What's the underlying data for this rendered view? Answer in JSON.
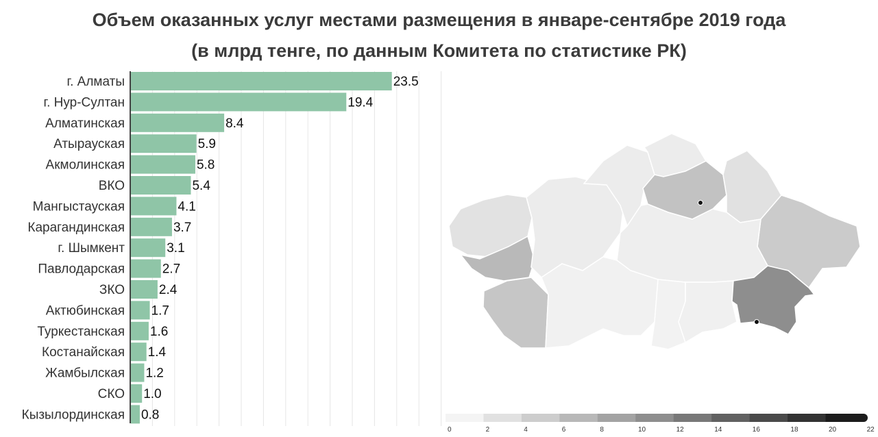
{
  "chart_data": {
    "type": "bar",
    "orientation": "horizontal",
    "title": "Объем оказанных услуг местами размещения в январе-сентябре 2019 года",
    "subtitle": "(в млрд тенге, по данным Комитета по статистике РК)",
    "categories": [
      "г. Алматы",
      "г. Нур-Султан",
      "Алматинская",
      "Атырауская",
      "Акмолинская",
      "ВКО",
      "Мангыстауская",
      "Карагандинская",
      "г. Шымкент",
      "Павлодарская",
      "ЗКО",
      "Актюбинская",
      "Туркестанская",
      "Костанайская",
      "Жамбылская",
      "СКО",
      "Кызылординская"
    ],
    "values": [
      23.5,
      19.4,
      8.4,
      5.9,
      5.8,
      5.4,
      4.1,
      3.7,
      3.1,
      2.7,
      2.4,
      1.7,
      1.6,
      1.4,
      1.2,
      1.0,
      0.8
    ],
    "value_labels": [
      "23.5",
      "19.4",
      "8.4",
      "5.9",
      "5.8",
      "5.4",
      "4.1",
      "3.7",
      "3.1",
      "2.7",
      "2.4",
      "1.7",
      "1.6",
      "1.4",
      "1.2",
      "1.0",
      "0.8"
    ],
    "xlim": [
      0,
      28
    ],
    "grid": true,
    "bar_color": "#8fc5a7",
    "map": {
      "type": "choropleth",
      "legend_ticks": [
        "0",
        "2",
        "4",
        "6",
        "8",
        "10",
        "12",
        "14",
        "16",
        "18",
        "20",
        "22"
      ],
      "legend_colors": [
        "#f4f4f4",
        "#e1e1e1",
        "#cdcdcd",
        "#b8b8b8",
        "#a3a3a3",
        "#8e8e8e",
        "#787878",
        "#616161",
        "#4a4a4a",
        "#333333",
        "#1c1c1c"
      ]
    }
  }
}
